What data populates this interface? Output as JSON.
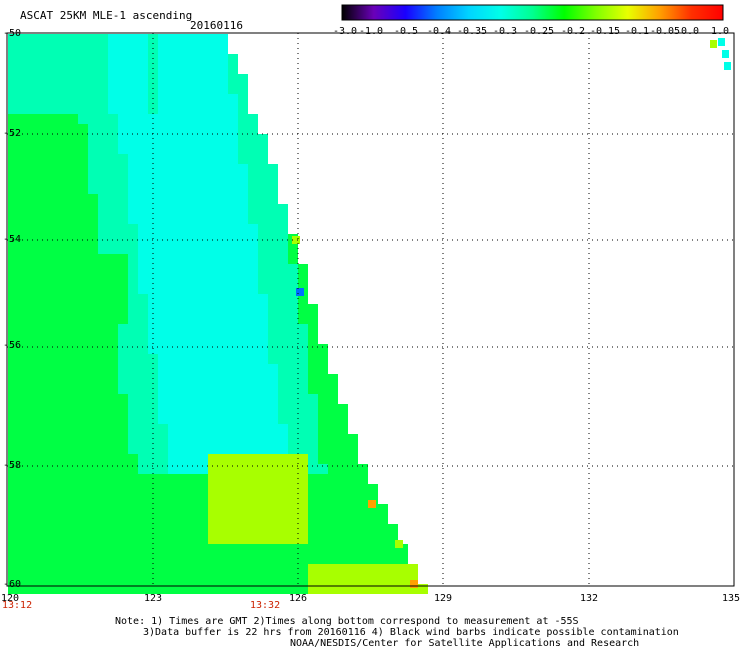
{
  "header": {
    "title": "ASCAT 25KM MLE-1 ascending",
    "date": "20160116"
  },
  "colorbar": {
    "labels": [
      "-3.0",
      "-1.0",
      "-0.5",
      "-0.4",
      "-0.35",
      "-0.3",
      "-0.25",
      "-0.2",
      "-0.15",
      "-0.1",
      "-0.05",
      "0.0",
      "1.0"
    ],
    "colors": [
      "#000000",
      "#6a00b8",
      "#1a00ff",
      "#0080ff",
      "#00d4ff",
      "#00ffe8",
      "#00ff90",
      "#00ff00",
      "#80ff00",
      "#e8ff00",
      "#ffa000",
      "#ff3000",
      "#ff0000"
    ]
  },
  "map": {
    "lon_range": [
      120,
      135
    ],
    "lat_range": [
      -60,
      -50
    ],
    "lon_ticks": [
      "120",
      "123",
      "126",
      "129",
      "132",
      "135"
    ],
    "lat_ticks": [
      "-50",
      "-52",
      "-54",
      "-56",
      "-58",
      "-60"
    ],
    "swath_colors": {
      "cyan": "#00ffe8",
      "teal": "#00ffb4",
      "green": "#00ff44",
      "yellow_green": "#a8ff00",
      "orange": "#ffa000",
      "blue": "#0070ff"
    }
  },
  "times": {
    "left": "13:12",
    "middle": "13:32"
  },
  "notes": {
    "line1": "Note: 1) Times are GMT 2)Times along bottom correspond to measurement at -55S",
    "line2": "3)Data buffer is 22 hrs from 20160116 4) Black wind barbs indicate possible contamination",
    "line3": "NOAA/NESDIS/Center for Satellite Applications and Research"
  }
}
